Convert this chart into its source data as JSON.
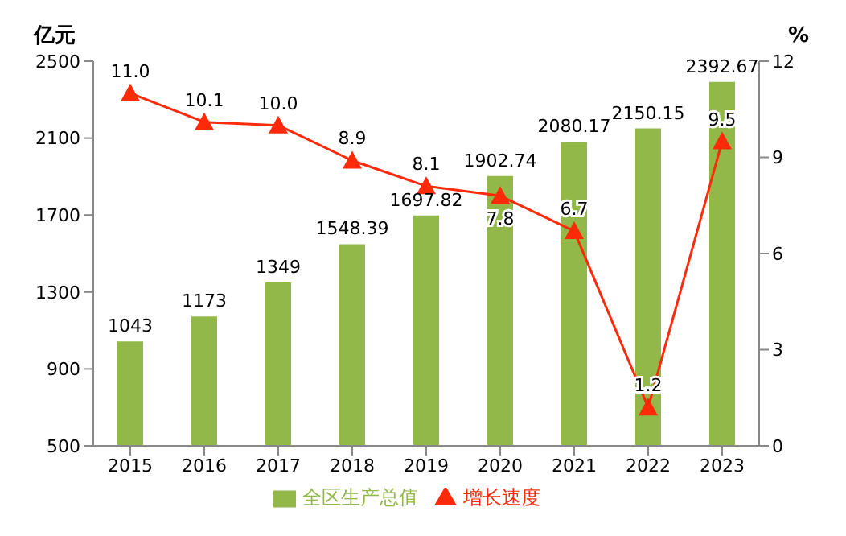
{
  "chart_data": {
    "type": "bar",
    "ylabel": "亿元",
    "y2label": "%",
    "categories": [
      "2015",
      "2016",
      "2017",
      "2018",
      "2019",
      "2020",
      "2021",
      "2022",
      "2023"
    ],
    "series": [
      {
        "name": "全区生产总值",
        "color": "#92b84a",
        "values": [
          1043,
          1173,
          1349,
          1548.39,
          1697.82,
          1902.74,
          2080.17,
          2150.15,
          2392.67
        ],
        "value_labels": [
          "1043",
          "1173",
          "1349",
          "1548.39",
          "1697.82",
          "1902.74",
          "2080.17",
          "2150.15",
          "2392.67"
        ]
      },
      {
        "name": "增长速度",
        "type": "line",
        "axis": "y2",
        "color": "#ff2a0a",
        "marker": "triangle",
        "values": [
          11.0,
          10.1,
          10.0,
          8.9,
          8.1,
          7.8,
          6.7,
          1.2,
          9.5
        ],
        "value_labels": [
          "11.0",
          "10.1",
          "10.0",
          "8.9",
          "8.1",
          "7.8",
          "6.7",
          "1.2",
          "9.5"
        ]
      }
    ],
    "ylim": [
      500,
      2500
    ],
    "yticks": [
      500,
      900,
      1300,
      1700,
      2100,
      2500
    ],
    "y2lim": [
      0,
      12
    ],
    "y2ticks": [
      0,
      3,
      6,
      9,
      12
    ],
    "grid": false,
    "legend": "bottom"
  }
}
